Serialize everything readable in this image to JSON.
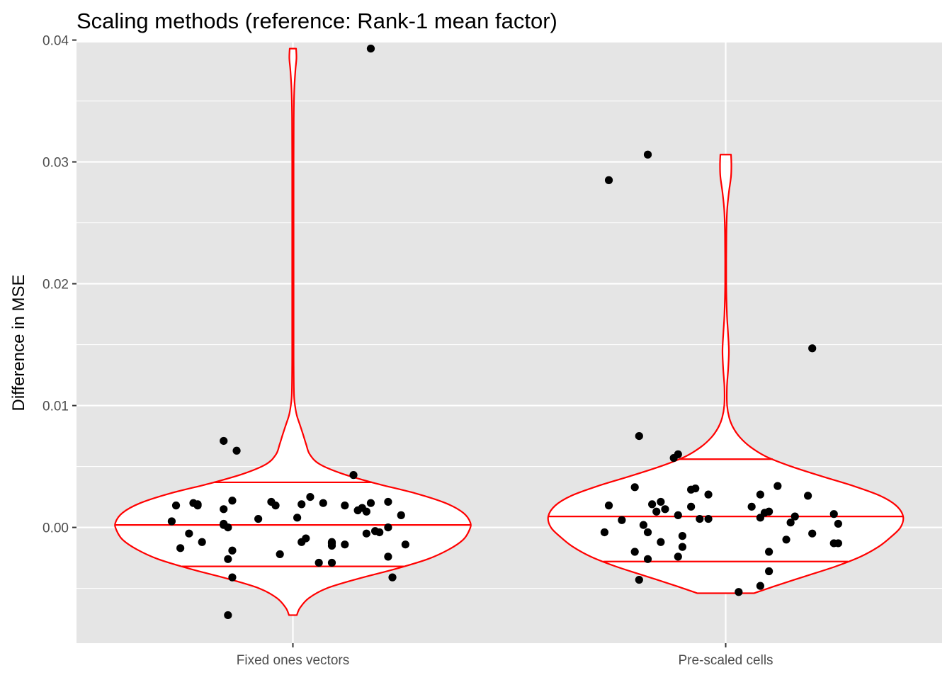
{
  "chart_data": {
    "type": "violin",
    "title": "Scaling methods (reference: Rank-1 mean factor)",
    "xlabel": "",
    "ylabel": "Difference in MSE",
    "categories": [
      "Fixed ones vectors",
      "Pre-scaled cells"
    ],
    "ylim": [
      -0.0095,
      0.0398
    ],
    "yticks": [
      0.0,
      0.01,
      0.02,
      0.03,
      0.04
    ],
    "ytick_labels": [
      "0.00",
      "0.01",
      "0.02",
      "0.03",
      "0.04"
    ],
    "grid": true,
    "legend": "none",
    "colors": {
      "panel": "#e5e5e5",
      "grid": "#ffffff",
      "violin_outline": "#ff0000",
      "violin_fill": "#ffffff",
      "points": "#000000"
    },
    "violins": [
      {
        "category": "Fixed ones vectors",
        "range": [
          -0.0072,
          0.0393
        ],
        "quantiles": {
          "q25": -0.0032,
          "median": 0.0002,
          "q75": 0.0037
        },
        "profile": [
          [
            -0.0072,
            0.022
          ],
          [
            -0.0066,
            0.04
          ],
          [
            -0.0058,
            0.09
          ],
          [
            -0.005,
            0.19
          ],
          [
            -0.0042,
            0.37
          ],
          [
            -0.0034,
            0.58
          ],
          [
            -0.0026,
            0.76
          ],
          [
            -0.0018,
            0.88
          ],
          [
            -0.001,
            0.96
          ],
          [
            -0.0002,
            0.995
          ],
          [
            0.0004,
            1.0
          ],
          [
            0.0012,
            0.96
          ],
          [
            0.002,
            0.86
          ],
          [
            0.0028,
            0.69
          ],
          [
            0.0036,
            0.47
          ],
          [
            0.0044,
            0.28
          ],
          [
            0.0052,
            0.15
          ],
          [
            0.006,
            0.095
          ],
          [
            0.0068,
            0.075
          ],
          [
            0.0076,
            0.058
          ],
          [
            0.0084,
            0.04
          ],
          [
            0.0092,
            0.022
          ],
          [
            0.01,
            0.012
          ],
          [
            0.011,
            0.006
          ],
          [
            0.014,
            0.004
          ],
          [
            0.02,
            0.004
          ],
          [
            0.03,
            0.004
          ],
          [
            0.034,
            0.005
          ],
          [
            0.036,
            0.008
          ],
          [
            0.0375,
            0.014
          ],
          [
            0.0385,
            0.02
          ],
          [
            0.0393,
            0.018
          ]
        ]
      },
      {
        "category": "Pre-scaled cells",
        "range": [
          -0.0054,
          0.0306
        ],
        "quantiles": {
          "q25": -0.0028,
          "median": 0.0009,
          "q75": 0.0056
        },
        "profile": [
          [
            -0.0054,
            0.16
          ],
          [
            -0.0048,
            0.28
          ],
          [
            -0.004,
            0.45
          ],
          [
            -0.0032,
            0.62
          ],
          [
            -0.0024,
            0.76
          ],
          [
            -0.0016,
            0.86
          ],
          [
            -0.0008,
            0.93
          ],
          [
            0.0,
            0.985
          ],
          [
            0.0009,
            1.0
          ],
          [
            0.0018,
            0.96
          ],
          [
            0.0026,
            0.87
          ],
          [
            0.0034,
            0.72
          ],
          [
            0.0042,
            0.54
          ],
          [
            0.005,
            0.37
          ],
          [
            0.0058,
            0.23
          ],
          [
            0.0066,
            0.14
          ],
          [
            0.0074,
            0.08
          ],
          [
            0.0082,
            0.042
          ],
          [
            0.009,
            0.02
          ],
          [
            0.01,
            0.008
          ],
          [
            0.0115,
            0.007
          ],
          [
            0.013,
            0.014
          ],
          [
            0.0145,
            0.018
          ],
          [
            0.016,
            0.013
          ],
          [
            0.0175,
            0.007
          ],
          [
            0.02,
            0.003
          ],
          [
            0.024,
            0.004
          ],
          [
            0.026,
            0.008
          ],
          [
            0.0275,
            0.018
          ],
          [
            0.0288,
            0.03
          ],
          [
            0.0298,
            0.032
          ],
          [
            0.0306,
            0.03
          ]
        ]
      }
    ],
    "points": [
      {
        "category": "Fixed ones vectors",
        "jitter": [
          [
            0.0393,
            0.18
          ],
          [
            0.0071,
            -0.16
          ],
          [
            0.0063,
            -0.13
          ],
          [
            0.0043,
            0.14
          ],
          [
            0.0025,
            0.04
          ],
          [
            0.0022,
            -0.14
          ],
          [
            0.0021,
            0.22
          ],
          [
            0.0021,
            -0.05
          ],
          [
            0.002,
            0.07
          ],
          [
            0.002,
            -0.23
          ],
          [
            0.002,
            0.18
          ],
          [
            0.0019,
            -0.22
          ],
          [
            0.0019,
            0.02
          ],
          [
            0.0018,
            -0.27
          ],
          [
            0.0018,
            -0.04
          ],
          [
            0.0018,
            0.12
          ],
          [
            0.0018,
            -0.22
          ],
          [
            0.0016,
            0.16
          ],
          [
            0.0015,
            -0.16
          ],
          [
            0.0014,
            0.15
          ],
          [
            0.0013,
            0.17
          ],
          [
            0.001,
            0.25
          ],
          [
            0.0008,
            0.01
          ],
          [
            0.0007,
            -0.08
          ],
          [
            0.0005,
            -0.28
          ],
          [
            0.0003,
            -0.16
          ],
          [
            0.0002,
            -0.16
          ],
          [
            0.0,
            0.22
          ],
          [
            0.0,
            -0.15
          ],
          [
            -0.0003,
            0.19
          ],
          [
            -0.0004,
            0.2
          ],
          [
            -0.0005,
            -0.24
          ],
          [
            -0.0005,
            0.17
          ],
          [
            -0.0009,
            0.03
          ],
          [
            -0.0012,
            0.09
          ],
          [
            -0.0012,
            -0.21
          ],
          [
            -0.0012,
            0.02
          ],
          [
            -0.0013,
            0.09
          ],
          [
            -0.0014,
            0.12
          ],
          [
            -0.0014,
            0.26
          ],
          [
            -0.0015,
            0.09
          ],
          [
            -0.0017,
            -0.26
          ],
          [
            -0.0019,
            -0.14
          ],
          [
            -0.0022,
            -0.03
          ],
          [
            -0.0024,
            0.22
          ],
          [
            -0.0026,
            -0.15
          ],
          [
            -0.0029,
            0.09
          ],
          [
            -0.0029,
            0.06
          ],
          [
            -0.0041,
            -0.14
          ],
          [
            -0.0041,
            0.23
          ],
          [
            -0.0072,
            -0.15
          ]
        ]
      },
      {
        "category": "Pre-scaled cells",
        "jitter": [
          [
            0.0306,
            -0.18
          ],
          [
            0.0285,
            -0.27
          ],
          [
            0.0147,
            0.2
          ],
          [
            0.0075,
            -0.2
          ],
          [
            0.006,
            -0.11
          ],
          [
            0.0057,
            -0.12
          ],
          [
            0.0034,
            0.12
          ],
          [
            0.0033,
            -0.21
          ],
          [
            0.0032,
            -0.07
          ],
          [
            0.0031,
            -0.08
          ],
          [
            0.0027,
            -0.04
          ],
          [
            0.0027,
            0.08
          ],
          [
            0.0026,
            0.19
          ],
          [
            0.0021,
            -0.15
          ],
          [
            0.0019,
            -0.17
          ],
          [
            0.0018,
            -0.27
          ],
          [
            0.0017,
            -0.08
          ],
          [
            0.0017,
            0.06
          ],
          [
            0.0015,
            -0.14
          ],
          [
            0.0013,
            -0.16
          ],
          [
            0.0013,
            0.1
          ],
          [
            0.0012,
            0.09
          ],
          [
            0.0011,
            0.25
          ],
          [
            0.001,
            -0.11
          ],
          [
            0.0009,
            0.16
          ],
          [
            0.0008,
            0.08
          ],
          [
            0.0007,
            -0.06
          ],
          [
            0.0007,
            -0.04
          ],
          [
            0.0006,
            -0.24
          ],
          [
            0.0004,
            0.15
          ],
          [
            0.0003,
            0.26
          ],
          [
            0.0002,
            -0.19
          ],
          [
            -0.0004,
            -0.18
          ],
          [
            -0.0004,
            -0.28
          ],
          [
            -0.0005,
            0.2
          ],
          [
            -0.0007,
            -0.1
          ],
          [
            -0.001,
            0.14
          ],
          [
            -0.0012,
            -0.15
          ],
          [
            -0.0013,
            0.25
          ],
          [
            -0.0013,
            0.26
          ],
          [
            -0.0016,
            -0.1
          ],
          [
            -0.002,
            -0.21
          ],
          [
            -0.002,
            0.1
          ],
          [
            -0.0024,
            -0.11
          ],
          [
            -0.0026,
            -0.18
          ],
          [
            -0.0036,
            0.1
          ],
          [
            -0.0043,
            -0.2
          ],
          [
            -0.0048,
            0.08
          ],
          [
            -0.0053,
            0.03
          ]
        ]
      }
    ]
  }
}
